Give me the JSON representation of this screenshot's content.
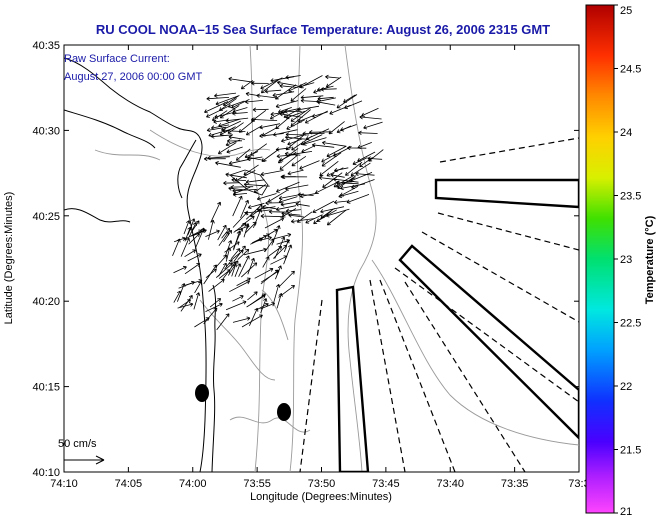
{
  "chart_data": {
    "type": "map",
    "title": "RU COOL  NOAA–15  Sea Surface Temperature:  August 26, 2006 2315 GMT",
    "subtitle_lines": [
      "Raw Surface Current:",
      "August 27, 2006 00:00 GMT"
    ],
    "xlabel": "Longitude (Degrees:Minutes)",
    "ylabel": "Latitude (Degrees:Minutes)",
    "x_ticks": [
      "74:10",
      "74:05",
      "74:00",
      "73:55",
      "73:50",
      "73:45",
      "73:40",
      "73:35",
      "73:3"
    ],
    "y_ticks": [
      "40:10",
      "40:15",
      "40:20",
      "40:25",
      "40:30",
      "40:35"
    ],
    "xlim": [
      "74:10",
      "73:30"
    ],
    "ylim": [
      "40:10",
      "40:35"
    ],
    "scale_label": "50 cm/s",
    "colorbar": {
      "label": "Temperature (°C)",
      "ticks": [
        "21",
        "21.5",
        "22",
        "22.5",
        "23",
        "23.5",
        "24",
        "24.5",
        "25"
      ],
      "range": [
        21,
        25
      ]
    },
    "colors": {
      "title": "#1a1aa8",
      "note": "#1a1aa8",
      "coast": "#000000",
      "bathymetry": "#9a9a9a",
      "vectors": "#000000"
    }
  }
}
